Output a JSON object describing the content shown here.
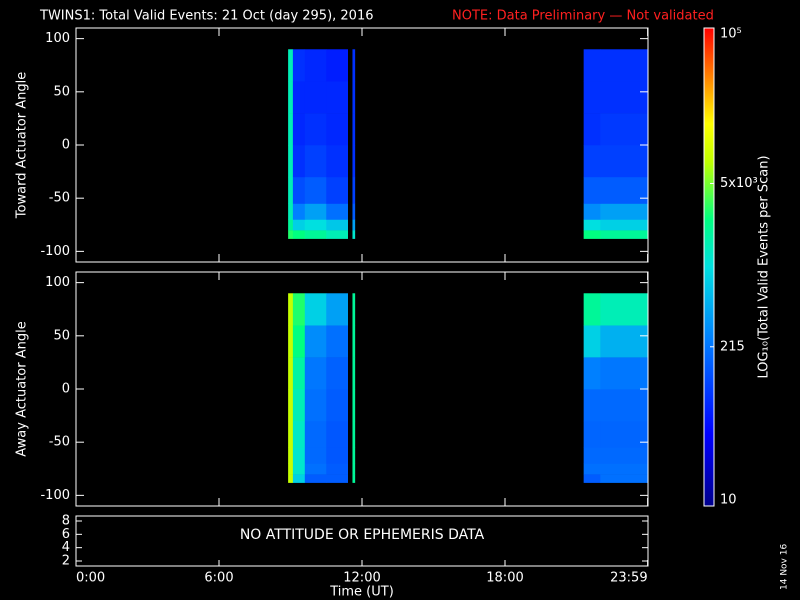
{
  "chart_data": {
    "type": "heatmap",
    "title": "TWINS1: Total Valid Events: 21 Oct (day 295), 2016",
    "note": "NOTE: Data Preliminary — Not validated",
    "note_color": "#ff2020",
    "xlabel": "Time (UT)",
    "xlim": [
      0,
      24
    ],
    "xticks": [
      {
        "value": 0,
        "label": "0:00"
      },
      {
        "value": 6,
        "label": "6:00"
      },
      {
        "value": 12,
        "label": "12:00"
      },
      {
        "value": 18,
        "label": "18:00"
      },
      {
        "value": 23.983,
        "label": "23:59"
      }
    ],
    "x_edges": [
      8.9,
      9.1,
      9.6,
      10.5,
      11.4,
      11.6,
      11.7,
      21.3,
      22.0,
      24
    ],
    "panels": [
      {
        "ylabel": "Toward Actuator Angle",
        "ylim": [
          -110,
          110
        ],
        "yticks": [
          -100,
          -50,
          0,
          50,
          100
        ],
        "y_edges": [
          -88,
          -80,
          -70,
          -55,
          -30,
          0,
          30,
          60,
          90
        ],
        "z": [
          [
            3000,
            2500,
            2000,
            1500,
            null,
            1200,
            null,
            2500,
            2000
          ],
          [
            2000,
            800,
            1000,
            700,
            null,
            400,
            null,
            1000,
            800
          ],
          [
            1500,
            250,
            400,
            200,
            null,
            150,
            null,
            300,
            400
          ],
          [
            1500,
            120,
            150,
            100,
            null,
            100,
            null,
            150,
            150
          ],
          [
            1500,
            80,
            100,
            80,
            null,
            80,
            null,
            100,
            100
          ],
          [
            1500,
            70,
            80,
            70,
            null,
            80,
            null,
            80,
            90
          ],
          [
            1500,
            70,
            70,
            70,
            null,
            80,
            null,
            80,
            80
          ],
          [
            1500,
            80,
            70,
            60,
            null,
            80,
            null,
            80,
            80
          ]
        ]
      },
      {
        "ylabel": "Away Actuator Angle",
        "ylim": [
          -110,
          110
        ],
        "yticks": [
          -100,
          -50,
          0,
          50,
          100
        ],
        "y_edges": [
          -88,
          -80,
          -70,
          -55,
          -30,
          0,
          30,
          60,
          90
        ],
        "z": [
          [
            8000,
            800,
            150,
            150,
            null,
            2000,
            null,
            150,
            200
          ],
          [
            8000,
            1200,
            200,
            150,
            null,
            2000,
            null,
            200,
            200
          ],
          [
            8000,
            1200,
            180,
            140,
            null,
            2000,
            null,
            180,
            180
          ],
          [
            8000,
            1300,
            180,
            140,
            null,
            2000,
            null,
            170,
            170
          ],
          [
            8000,
            1500,
            200,
            150,
            null,
            2000,
            null,
            180,
            180
          ],
          [
            8000,
            1800,
            220,
            160,
            null,
            2000,
            null,
            250,
            220
          ],
          [
            8000,
            2500,
            300,
            200,
            null,
            2000,
            null,
            800,
            500
          ],
          [
            8000,
            3000,
            800,
            400,
            null,
            2000,
            null,
            2000,
            1500
          ]
        ]
      }
    ],
    "aux_panel": {
      "ylim": [
        1.25,
        8.75
      ],
      "yticks": [
        2,
        4,
        6,
        8
      ],
      "annotation": "NO ATTITUDE OR EPHEMERIS DATA"
    },
    "colorbar": {
      "label": "LOG₁₀(Total Valid Events per Scan)",
      "lim": [
        10,
        100000
      ],
      "log": true,
      "ticks": [
        {
          "value": 10,
          "label": "10"
        },
        {
          "value": 215,
          "label": "215"
        },
        {
          "value": 5000,
          "label": "5x10³"
        },
        {
          "value": 100000,
          "label": "10⁵"
        }
      ],
      "colorscale": [
        [
          0,
          "#00008c"
        ],
        [
          0.15,
          "#0000ff"
        ],
        [
          0.35,
          "#0080ff"
        ],
        [
          0.5,
          "#00e0e0"
        ],
        [
          0.6,
          "#00ff80"
        ],
        [
          0.72,
          "#c0ff00"
        ],
        [
          0.8,
          "#ffff00"
        ],
        [
          0.9,
          "#ff8000"
        ],
        [
          1,
          "#ff0000"
        ]
      ]
    },
    "date_stamp": "14 Nov 16"
  }
}
